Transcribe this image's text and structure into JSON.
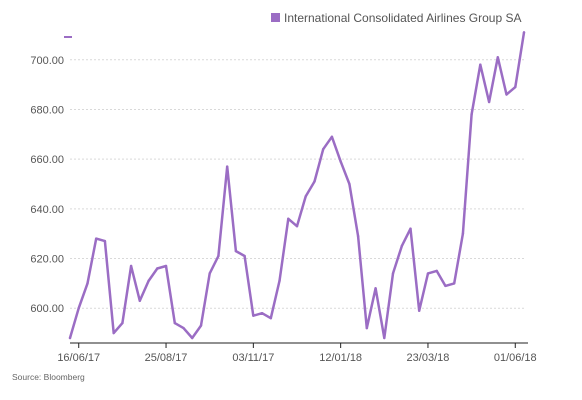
{
  "chart_data": {
    "type": "line",
    "title": "",
    "xlabel": "",
    "ylabel": "",
    "series": [
      {
        "name": "International Consolidated Airlines Group SA",
        "values": [
          588,
          600,
          610,
          628,
          627,
          590,
          594,
          617,
          603,
          611,
          616,
          617,
          594,
          592,
          588,
          593,
          614,
          621,
          657,
          623,
          621,
          597,
          598,
          596,
          611,
          636,
          633,
          645,
          651,
          664,
          669,
          659,
          650,
          629,
          592,
          608,
          588,
          614,
          625,
          632,
          599,
          614,
          615,
          609,
          610,
          630,
          678,
          698,
          683,
          701,
          686,
          689,
          711
        ]
      }
    ],
    "x_tick_labels": [
      "16/06/17",
      "25/08/17",
      "03/11/17",
      "12/01/18",
      "23/03/18",
      "01/06/18"
    ],
    "x_tick_positions": [
      1,
      11,
      21,
      31,
      41,
      51
    ],
    "y_ticks": [
      600,
      620,
      640,
      660,
      680,
      700
    ],
    "y_tick_labels": [
      "600.00",
      "620.00",
      "640.00",
      "660.00",
      "680.00",
      "700.00"
    ],
    "ylim": [
      586,
      716
    ],
    "grid": true,
    "legend_placement": "top-right",
    "source": "Source: Bloomberg",
    "colors": {
      "line": "#9b6dc4",
      "grid": "#d9d9d9",
      "axis": "#222222",
      "text": "#555555"
    }
  }
}
